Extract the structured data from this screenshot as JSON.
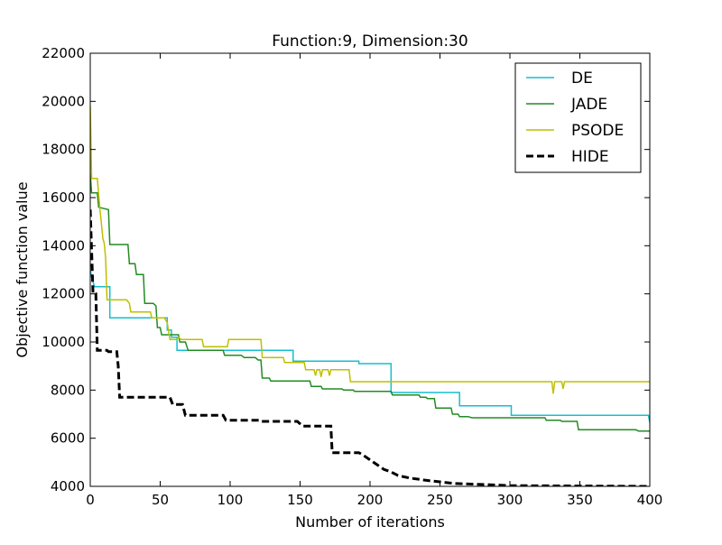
{
  "chart_data": {
    "type": "line",
    "title": "Function:9, Dimension:30",
    "xlabel": "Number of iterations",
    "ylabel": "Objective function value",
    "xlim": [
      0,
      400
    ],
    "ylim": [
      4000,
      22000
    ],
    "xticks": [
      0,
      50,
      100,
      150,
      200,
      250,
      300,
      350,
      400
    ],
    "yticks": [
      4000,
      6000,
      8000,
      10000,
      12000,
      14000,
      16000,
      18000,
      20000,
      22000
    ],
    "grid": false,
    "legend_position": "top-right",
    "series": [
      {
        "name": "DE",
        "color": "#17becf",
        "style": "solid",
        "points": [
          [
            0,
            13000
          ],
          [
            1,
            12700
          ],
          [
            3,
            12300
          ],
          [
            14,
            12300
          ],
          [
            14,
            11000
          ],
          [
            55,
            11000
          ],
          [
            55,
            10500
          ],
          [
            58,
            10500
          ],
          [
            58,
            10200
          ],
          [
            62,
            10200
          ],
          [
            62,
            9650
          ],
          [
            145,
            9650
          ],
          [
            145,
            9200
          ],
          [
            192,
            9200
          ],
          [
            192,
            9100
          ],
          [
            215,
            9100
          ],
          [
            215,
            7900
          ],
          [
            264,
            7900
          ],
          [
            264,
            7350
          ],
          [
            301,
            7350
          ],
          [
            301,
            6950
          ],
          [
            399,
            6950
          ],
          [
            400,
            6650
          ]
        ]
      },
      {
        "name": "JADE",
        "color": "#228b22",
        "style": "solid",
        "points": [
          [
            0,
            17000
          ],
          [
            1,
            16200
          ],
          [
            5,
            16200
          ],
          [
            6,
            15600
          ],
          [
            13,
            15500
          ],
          [
            14,
            14050
          ],
          [
            27,
            14050
          ],
          [
            28,
            13250
          ],
          [
            32,
            13250
          ],
          [
            33,
            12800
          ],
          [
            38,
            12800
          ],
          [
            39,
            11600
          ],
          [
            45,
            11600
          ],
          [
            47,
            11500
          ],
          [
            48,
            10600
          ],
          [
            50,
            10600
          ],
          [
            51,
            10300
          ],
          [
            63,
            10300
          ],
          [
            64,
            10000
          ],
          [
            68,
            10000
          ],
          [
            70,
            9650
          ],
          [
            95,
            9650
          ],
          [
            96,
            9450
          ],
          [
            108,
            9450
          ],
          [
            110,
            9350
          ],
          [
            118,
            9350
          ],
          [
            120,
            9250
          ],
          [
            122,
            9250
          ],
          [
            123,
            8500
          ],
          [
            128,
            8500
          ],
          [
            129,
            8380
          ],
          [
            157,
            8380
          ],
          [
            158,
            8150
          ],
          [
            165,
            8150
          ],
          [
            166,
            8050
          ],
          [
            180,
            8050
          ],
          [
            181,
            8000
          ],
          [
            188,
            8000
          ],
          [
            189,
            7950
          ],
          [
            215,
            7950
          ],
          [
            216,
            7800
          ],
          [
            235,
            7800
          ],
          [
            236,
            7700
          ],
          [
            240,
            7700
          ],
          [
            241,
            7650
          ],
          [
            246,
            7650
          ],
          [
            247,
            7250
          ],
          [
            258,
            7250
          ],
          [
            259,
            7000
          ],
          [
            263,
            7000
          ],
          [
            264,
            6900
          ],
          [
            270,
            6900
          ],
          [
            273,
            6850
          ],
          [
            325,
            6850
          ],
          [
            326,
            6750
          ],
          [
            336,
            6750
          ],
          [
            337,
            6700
          ],
          [
            348,
            6700
          ],
          [
            349,
            6350
          ],
          [
            390,
            6350
          ],
          [
            392,
            6300
          ],
          [
            400,
            6300
          ]
        ]
      },
      {
        "name": "PSODE",
        "color": "#bfbf00",
        "style": "solid",
        "points": [
          [
            0,
            19800
          ],
          [
            1,
            16800
          ],
          [
            5,
            16800
          ],
          [
            7,
            15500
          ],
          [
            9,
            14300
          ],
          [
            10,
            14100
          ],
          [
            11,
            13500
          ],
          [
            12,
            11750
          ],
          [
            26,
            11750
          ],
          [
            28,
            11600
          ],
          [
            29,
            11250
          ],
          [
            43,
            11250
          ],
          [
            44,
            11000
          ],
          [
            53,
            11000
          ],
          [
            55,
            10800
          ],
          [
            57,
            10100
          ],
          [
            62,
            10100
          ],
          [
            63,
            10200
          ],
          [
            65,
            10100
          ],
          [
            80,
            10100
          ],
          [
            81,
            9800
          ],
          [
            98,
            9800
          ],
          [
            99,
            10100
          ],
          [
            122,
            10100
          ],
          [
            123,
            9350
          ],
          [
            138,
            9350
          ],
          [
            139,
            9150
          ],
          [
            153,
            9150
          ],
          [
            154,
            8850
          ],
          [
            160,
            8850
          ],
          [
            161,
            8600
          ],
          [
            162,
            8850
          ],
          [
            164,
            8850
          ],
          [
            165,
            8550
          ],
          [
            166,
            8850
          ],
          [
            170,
            8850
          ],
          [
            171,
            8600
          ],
          [
            172,
            8850
          ],
          [
            185,
            8850
          ],
          [
            186,
            8350
          ],
          [
            330,
            8350
          ],
          [
            331,
            7850
          ],
          [
            332,
            8350
          ],
          [
            337,
            8350
          ],
          [
            338,
            8050
          ],
          [
            339,
            8350
          ],
          [
            400,
            8350
          ]
        ]
      },
      {
        "name": "HIDE",
        "color": "#000000",
        "style": "dashed",
        "points": [
          [
            0,
            15500
          ],
          [
            2,
            12000
          ],
          [
            4,
            12000
          ],
          [
            5,
            9650
          ],
          [
            12,
            9650
          ],
          [
            13,
            9600
          ],
          [
            19,
            9600
          ],
          [
            20,
            9000
          ],
          [
            21,
            7700
          ],
          [
            57,
            7700
          ],
          [
            59,
            7400
          ],
          [
            66,
            7400
          ],
          [
            68,
            6950
          ],
          [
            95,
            6950
          ],
          [
            97,
            6750
          ],
          [
            121,
            6750
          ],
          [
            122,
            6700
          ],
          [
            148,
            6700
          ],
          [
            152,
            6500
          ],
          [
            172,
            6500
          ],
          [
            173,
            5400
          ],
          [
            192,
            5400
          ],
          [
            195,
            5300
          ],
          [
            200,
            5100
          ],
          [
            205,
            4900
          ],
          [
            210,
            4700
          ],
          [
            215,
            4600
          ],
          [
            220,
            4450
          ],
          [
            228,
            4350
          ],
          [
            240,
            4250
          ],
          [
            260,
            4120
          ],
          [
            280,
            4080
          ],
          [
            300,
            4030
          ],
          [
            400,
            4000
          ]
        ]
      }
    ]
  }
}
